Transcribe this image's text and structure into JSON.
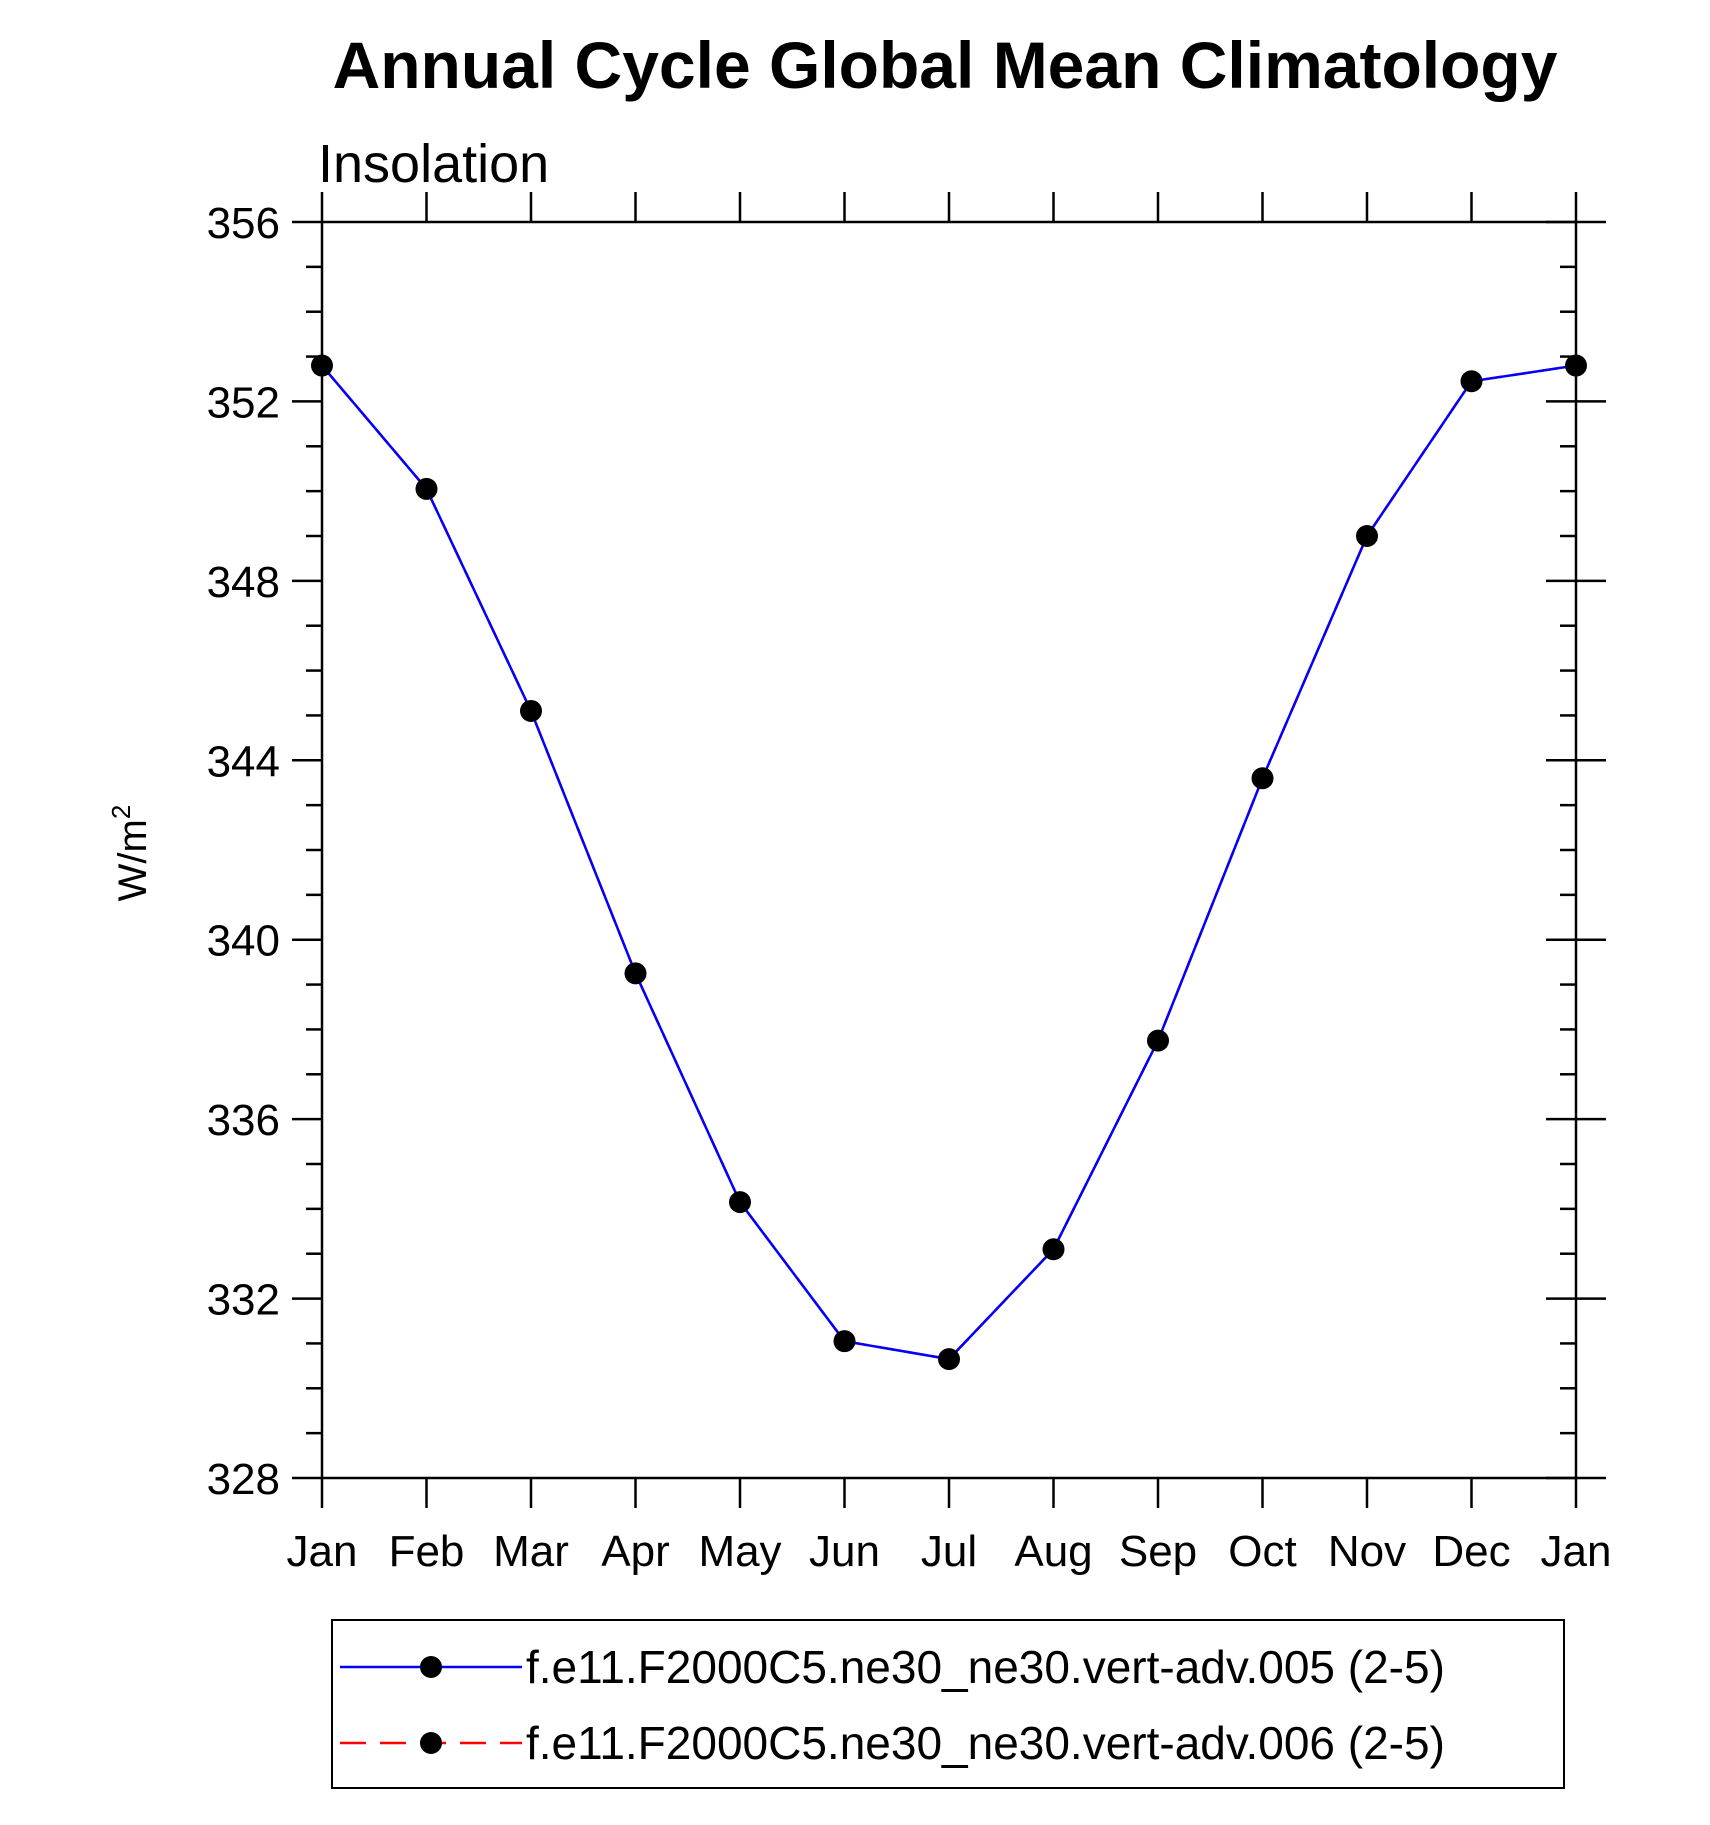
{
  "chart_data": {
    "type": "line",
    "title": "Annual Cycle Global Mean Climatology",
    "subtitle": "Insolation",
    "ylabel_base": "W/m",
    "ylabel_exponent": "2",
    "categories": [
      "Jan",
      "Feb",
      "Mar",
      "Apr",
      "May",
      "Jun",
      "Jul",
      "Aug",
      "Sep",
      "Oct",
      "Nov",
      "Dec",
      "Jan"
    ],
    "ylim": [
      328,
      356
    ],
    "yticks": [
      "328",
      "332",
      "336",
      "340",
      "344",
      "348",
      "352",
      "356"
    ],
    "grid": false,
    "legend_position": "bottom",
    "series": [
      {
        "name": "f.e11.F2000C5.ne30_ne30.vert-adv.005 (2-5)",
        "color": "#0000ff",
        "line_style": "solid",
        "marker": "filled-circle",
        "marker_color": "#000000",
        "values": [
          352.8,
          350.05,
          345.1,
          339.25,
          334.15,
          331.05,
          330.65,
          333.1,
          337.75,
          343.6,
          349.0,
          352.45,
          352.8
        ]
      },
      {
        "name": "f.e11.F2000C5.ne30_ne30.vert-adv.006 (2-5)",
        "color": "#ff0000",
        "line_style": "dashed",
        "marker": "filled-circle",
        "marker_color": "#000000",
        "values": [
          352.8,
          350.05,
          345.1,
          339.25,
          334.15,
          331.05,
          330.65,
          333.1,
          337.75,
          343.6,
          349.0,
          352.45,
          352.8
        ]
      }
    ]
  }
}
